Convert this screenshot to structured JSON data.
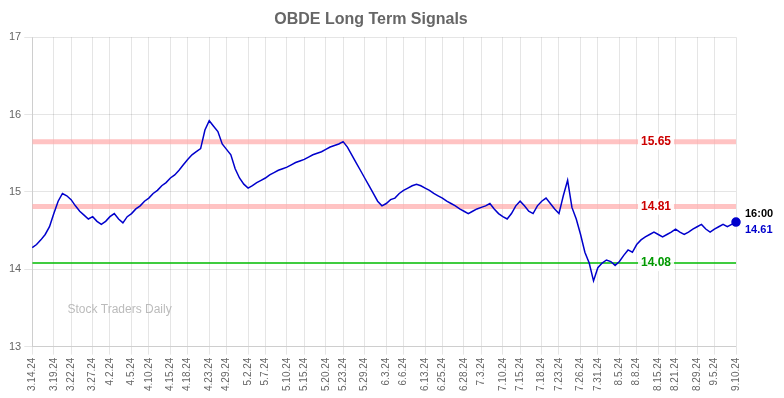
{
  "chart_data": {
    "type": "line",
    "title": "OBDE Long Term Signals",
    "color": "#0000cc",
    "grid": true,
    "ylim": [
      13,
      17
    ],
    "yticks": [
      13,
      14,
      15,
      16,
      17
    ],
    "categories": [
      "3.14.24",
      null,
      null,
      null,
      null,
      "3.19.24",
      null,
      null,
      null,
      "3.22.24",
      null,
      null,
      null,
      null,
      "3.27.24",
      null,
      null,
      null,
      "4.2.24",
      null,
      null,
      null,
      null,
      "4.5.24",
      null,
      null,
      null,
      "4.10.24",
      null,
      null,
      null,
      null,
      "4.15.24",
      null,
      null,
      null,
      "4.18.24",
      null,
      null,
      null,
      null,
      "4.23.24",
      null,
      null,
      null,
      "4.29.24",
      null,
      null,
      null,
      null,
      "5.2.24",
      null,
      null,
      null,
      "5.7.24",
      null,
      null,
      null,
      null,
      "5.10.24",
      null,
      null,
      null,
      "5.15.24",
      null,
      null,
      null,
      null,
      "5.20.24",
      null,
      null,
      null,
      "5.23.24",
      null,
      null,
      null,
      null,
      "5.29.24",
      null,
      null,
      null,
      null,
      "6.3.24",
      null,
      null,
      null,
      "6.6.24",
      null,
      null,
      null,
      null,
      "6.13.24",
      null,
      null,
      null,
      "6.25.24",
      null,
      null,
      null,
      null,
      "6.28.24",
      null,
      null,
      null,
      "7.3.24",
      null,
      null,
      null,
      null,
      "7.10.24",
      null,
      null,
      null,
      "7.15.24",
      null,
      null,
      null,
      null,
      "7.18.24",
      null,
      null,
      null,
      "7.23.24",
      null,
      null,
      null,
      null,
      "7.26.24",
      null,
      null,
      null,
      "7.31.24",
      null,
      null,
      null,
      null,
      "8.5.24",
      null,
      null,
      null,
      "8.8.24",
      null,
      null,
      null,
      null,
      "8.15.24",
      null,
      null,
      null,
      "8.21.24",
      null,
      null,
      null,
      null,
      "8.29.24",
      null,
      null,
      null,
      "9.5.24",
      null,
      null,
      null,
      null,
      "9.10.24"
    ],
    "values": [
      14.28,
      14.32,
      14.38,
      14.45,
      14.55,
      14.72,
      14.88,
      14.98,
      14.95,
      14.9,
      14.82,
      14.75,
      14.7,
      14.65,
      14.68,
      14.62,
      14.58,
      14.62,
      14.68,
      14.72,
      14.65,
      14.6,
      14.68,
      14.72,
      14.78,
      14.82,
      14.88,
      14.92,
      14.98,
      15.02,
      15.08,
      15.12,
      15.18,
      15.22,
      15.28,
      15.35,
      15.42,
      15.48,
      15.52,
      15.56,
      15.8,
      15.92,
      15.85,
      15.78,
      15.62,
      15.55,
      15.48,
      15.3,
      15.18,
      15.1,
      15.05,
      15.08,
      15.12,
      15.15,
      15.18,
      15.22,
      15.25,
      15.28,
      15.3,
      15.32,
      15.35,
      15.38,
      15.4,
      15.42,
      15.45,
      15.48,
      15.5,
      15.52,
      15.55,
      15.58,
      15.6,
      15.62,
      15.65,
      15.58,
      15.48,
      15.38,
      15.28,
      15.18,
      15.08,
      14.98,
      14.88,
      14.82,
      14.85,
      14.9,
      14.92,
      14.98,
      15.02,
      15.05,
      15.08,
      15.1,
      15.08,
      15.05,
      15.02,
      14.98,
      14.95,
      14.92,
      14.88,
      14.85,
      14.82,
      14.78,
      14.75,
      14.72,
      14.75,
      14.78,
      14.8,
      14.82,
      14.85,
      14.78,
      14.72,
      14.68,
      14.65,
      14.72,
      14.82,
      14.88,
      14.82,
      14.75,
      14.72,
      14.82,
      14.88,
      14.92,
      14.85,
      14.78,
      14.72,
      14.95,
      15.15,
      14.8,
      14.65,
      14.45,
      14.22,
      14.08,
      13.85,
      14.02,
      14.08,
      14.12,
      14.1,
      14.05,
      14.1,
      14.18,
      14.25,
      14.22,
      14.32,
      14.38,
      14.42,
      14.45,
      14.48,
      14.45,
      14.42,
      14.45,
      14.48,
      14.52,
      14.48,
      14.45,
      14.48,
      14.52,
      14.55,
      14.58,
      14.52,
      14.48,
      14.52,
      14.55,
      14.58,
      14.55,
      14.58,
      14.61
    ],
    "lines": [
      {
        "y": 14.08,
        "color": "#00bb00"
      },
      {
        "y": 14.81,
        "color": "#ffaaaa"
      },
      {
        "y": 15.65,
        "color": "#ffaaaa"
      }
    ],
    "annotations": [
      {
        "text": "15.65",
        "color": "#cc0000",
        "y": 15.65
      },
      {
        "text": "14.81",
        "color": "#cc0000",
        "y": 14.81
      },
      {
        "text": "14.08",
        "color": "#009900",
        "y": 14.08
      }
    ],
    "end_labels": [
      {
        "text": "16:00",
        "color": "#000000"
      },
      {
        "text": "14.61",
        "color": "#0000cc"
      }
    ],
    "watermark": {
      "text": "Stock Traders Daily",
      "color": "#bbbbbb"
    }
  }
}
